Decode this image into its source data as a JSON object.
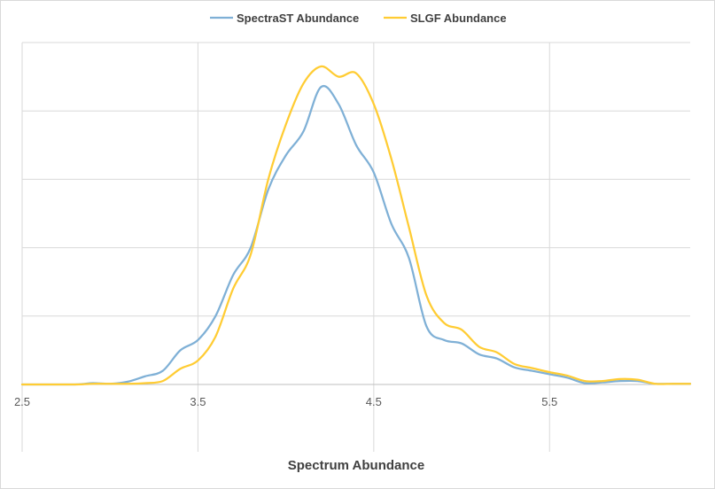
{
  "chart_data": {
    "type": "line",
    "title": "",
    "xlabel": "Spectrum Abundance",
    "ylabel": "",
    "xlim": [
      2.5,
      6.3
    ],
    "ylim": [
      0,
      1
    ],
    "x_ticks": [
      "2.5",
      "3.5",
      "4.5",
      "5.5"
    ],
    "x_tick_values": [
      2.5,
      3.5,
      4.5,
      5.5
    ],
    "y_gridlines": [
      0,
      0.2,
      0.4,
      0.6,
      0.8,
      1.0
    ],
    "y_tick_labels_visible": false,
    "grid": true,
    "legend_position": "top",
    "series": [
      {
        "name": "SpectraST Abundance",
        "color": "#7fb0d6",
        "points": [
          [
            2.5,
            0.0
          ],
          [
            2.8,
            0.0
          ],
          [
            2.9,
            0.004
          ],
          [
            3.0,
            0.002
          ],
          [
            3.1,
            0.008
          ],
          [
            3.2,
            0.024
          ],
          [
            3.3,
            0.04
          ],
          [
            3.4,
            0.1
          ],
          [
            3.5,
            0.13
          ],
          [
            3.6,
            0.2
          ],
          [
            3.7,
            0.32
          ],
          [
            3.8,
            0.4
          ],
          [
            3.9,
            0.57
          ],
          [
            4.0,
            0.67
          ],
          [
            4.1,
            0.74
          ],
          [
            4.2,
            0.87
          ],
          [
            4.3,
            0.82
          ],
          [
            4.4,
            0.7
          ],
          [
            4.5,
            0.62
          ],
          [
            4.6,
            0.47
          ],
          [
            4.7,
            0.37
          ],
          [
            4.8,
            0.17
          ],
          [
            4.9,
            0.13
          ],
          [
            5.0,
            0.12
          ],
          [
            5.1,
            0.088
          ],
          [
            5.2,
            0.076
          ],
          [
            5.3,
            0.05
          ],
          [
            5.4,
            0.04
          ],
          [
            5.5,
            0.03
          ],
          [
            5.6,
            0.02
          ],
          [
            5.7,
            0.004
          ],
          [
            5.8,
            0.006
          ],
          [
            5.9,
            0.01
          ],
          [
            6.0,
            0.01
          ],
          [
            6.1,
            0.002
          ],
          [
            6.2,
            0.002
          ],
          [
            6.3,
            0.002
          ]
        ]
      },
      {
        "name": "SLGF Abundance",
        "color": "#ffcc33",
        "points": [
          [
            2.5,
            0.0
          ],
          [
            2.8,
            0.0
          ],
          [
            2.9,
            0.002
          ],
          [
            3.0,
            0.002
          ],
          [
            3.1,
            0.002
          ],
          [
            3.2,
            0.004
          ],
          [
            3.3,
            0.01
          ],
          [
            3.4,
            0.046
          ],
          [
            3.5,
            0.07
          ],
          [
            3.6,
            0.14
          ],
          [
            3.7,
            0.28
          ],
          [
            3.8,
            0.38
          ],
          [
            3.9,
            0.6
          ],
          [
            4.0,
            0.76
          ],
          [
            4.1,
            0.88
          ],
          [
            4.2,
            0.93
          ],
          [
            4.3,
            0.9
          ],
          [
            4.4,
            0.91
          ],
          [
            4.5,
            0.82
          ],
          [
            4.6,
            0.66
          ],
          [
            4.7,
            0.46
          ],
          [
            4.8,
            0.26
          ],
          [
            4.9,
            0.18
          ],
          [
            5.0,
            0.16
          ],
          [
            5.1,
            0.11
          ],
          [
            5.2,
            0.094
          ],
          [
            5.3,
            0.06
          ],
          [
            5.4,
            0.048
          ],
          [
            5.5,
            0.036
          ],
          [
            5.6,
            0.026
          ],
          [
            5.7,
            0.01
          ],
          [
            5.8,
            0.01
          ],
          [
            5.9,
            0.016
          ],
          [
            6.0,
            0.014
          ],
          [
            6.1,
            0.002
          ],
          [
            6.2,
            0.002
          ],
          [
            6.3,
            0.002
          ]
        ]
      }
    ]
  }
}
